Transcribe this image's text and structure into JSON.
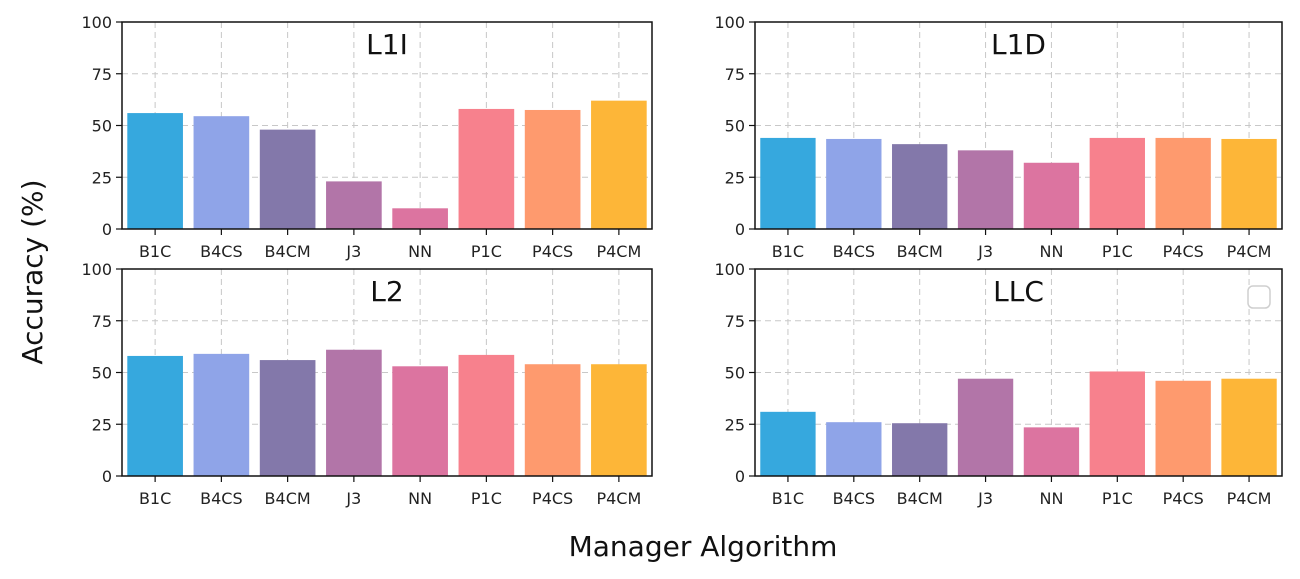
{
  "figure": {
    "xlabel": "Manager Algorithm",
    "ylabel": "Accuracy (%)"
  },
  "chart_data": [
    {
      "type": "bar",
      "title": "L1I",
      "categories": [
        "B1C",
        "B4CS",
        "B4CM",
        "J3",
        "NN",
        "P1C",
        "P4CS",
        "P4CM"
      ],
      "values": [
        56,
        54.5,
        48,
        23,
        10,
        58,
        57.5,
        62
      ],
      "colors": [
        "#36a8de",
        "#8fa4e8",
        "#8378aa",
        "#b275a8",
        "#dc74a0",
        "#f7818d",
        "#fe9a6e",
        "#fdb638"
      ],
      "ylim": [
        0,
        100
      ],
      "yticks": [
        0,
        25,
        50,
        75,
        100
      ],
      "grid": true
    },
    {
      "type": "bar",
      "title": "L1D",
      "categories": [
        "B1C",
        "B4CS",
        "B4CM",
        "J3",
        "NN",
        "P1C",
        "P4CS",
        "P4CM"
      ],
      "values": [
        44,
        43.5,
        41,
        38,
        32,
        44,
        44,
        43.5
      ],
      "colors": [
        "#36a8de",
        "#8fa4e8",
        "#8378aa",
        "#b275a8",
        "#dc74a0",
        "#f7818d",
        "#fe9a6e",
        "#fdb638"
      ],
      "ylim": [
        0,
        100
      ],
      "yticks": [
        0,
        25,
        50,
        75,
        100
      ],
      "grid": true
    },
    {
      "type": "bar",
      "title": "L2",
      "categories": [
        "B1C",
        "B4CS",
        "B4CM",
        "J3",
        "NN",
        "P1C",
        "P4CS",
        "P4CM"
      ],
      "values": [
        58,
        59,
        56,
        61,
        53,
        58.5,
        54,
        54
      ],
      "colors": [
        "#36a8de",
        "#8fa4e8",
        "#8378aa",
        "#b275a8",
        "#dc74a0",
        "#f7818d",
        "#fe9a6e",
        "#fdb638"
      ],
      "ylim": [
        0,
        100
      ],
      "yticks": [
        0,
        25,
        50,
        75,
        100
      ],
      "grid": true
    },
    {
      "type": "bar",
      "title": "LLC",
      "categories": [
        "B1C",
        "B4CS",
        "B4CM",
        "J3",
        "NN",
        "P1C",
        "P4CS",
        "P4CM"
      ],
      "values": [
        31,
        26,
        25.5,
        47,
        23.5,
        50.5,
        46,
        47
      ],
      "colors": [
        "#36a8de",
        "#8fa4e8",
        "#8378aa",
        "#b275a8",
        "#dc74a0",
        "#f7818d",
        "#fe9a6e",
        "#fdb638"
      ],
      "ylim": [
        0,
        100
      ],
      "yticks": [
        0,
        25,
        50,
        75,
        100
      ],
      "grid": true,
      "legend": "top-right"
    }
  ]
}
